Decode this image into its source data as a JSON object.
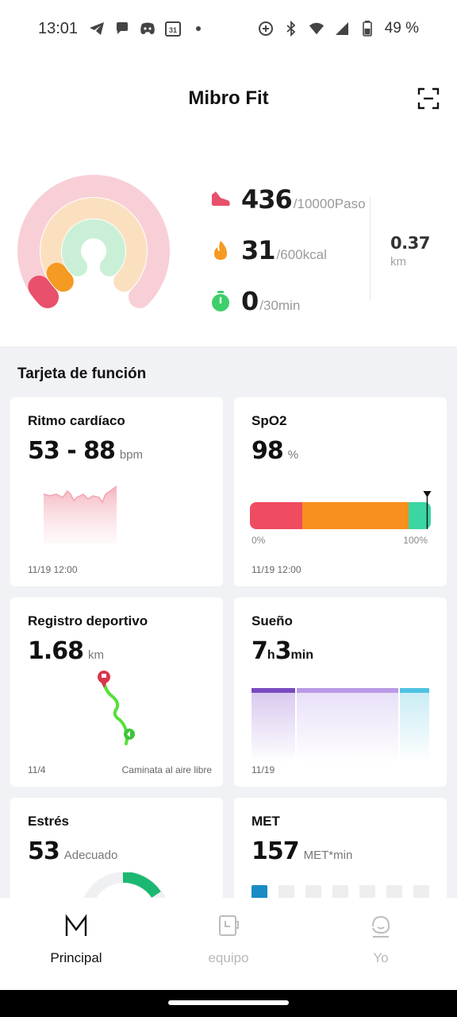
{
  "status_bar": {
    "time": "13:01",
    "battery_percent": "49 %",
    "calendar_day": "31",
    "icons_left": [
      "telegram-icon",
      "chat-icon",
      "discord-icon",
      "calendar-icon",
      "dot-icon"
    ],
    "icons_right": [
      "data-saver-icon",
      "bluetooth-icon",
      "wifi-icon",
      "signal-icon",
      "battery-icon"
    ]
  },
  "header": {
    "title": "Mibro Fit",
    "scan_icon": "scan-icon"
  },
  "activity": {
    "steps": {
      "value": "436",
      "goal": "/10000Paso",
      "icon": "shoe-icon",
      "color": "#e8506b",
      "progress": 0.0436
    },
    "calories": {
      "value": "31",
      "goal": "/600kcal",
      "icon": "flame-icon",
      "color": "#f59a23",
      "progress": 0.052
    },
    "exercise": {
      "value": "0",
      "goal": "/30min",
      "icon": "stopwatch-icon",
      "color": "#3ccf6a",
      "progress": 0
    },
    "distance": {
      "value": "0.37",
      "unit": "km"
    },
    "ring_colors": {
      "outer": "#f8cfd7",
      "middle": "#fbe0c0",
      "inner": "#c9f0d6"
    }
  },
  "section_title": "Tarjeta de función",
  "cards": {
    "heart_rate": {
      "title": "Ritmo cardíaco",
      "value": "53 - 88",
      "unit": "bpm",
      "footer": "11/19 12:00"
    },
    "spo2": {
      "title": "SpO2",
      "value": "98",
      "unit": "%",
      "scale_min": "0%",
      "scale_max": "100%",
      "footer": "11/19 12:00",
      "marker_value": 98
    },
    "sport": {
      "title": "Registro deportivo",
      "value": "1.68",
      "unit": "km",
      "footer_left": "11/4",
      "footer_right": "Caminata al aire libre"
    },
    "sleep": {
      "title": "Sueño",
      "hours": "7",
      "h_unit": "h",
      "minutes": "3",
      "m_unit": "min",
      "footer": "11/19"
    },
    "stress": {
      "title": "Estrés",
      "value": "53",
      "unit": "Adecuado"
    },
    "met": {
      "title": "MET",
      "value": "157",
      "unit": "MET*min"
    }
  },
  "bottom_nav": {
    "items": [
      {
        "label": "Principal",
        "icon": "m-logo-icon",
        "active": true
      },
      {
        "label": "equipo",
        "icon": "watch-icon",
        "active": false
      },
      {
        "label": "Yo",
        "icon": "profile-icon",
        "active": false
      }
    ]
  }
}
